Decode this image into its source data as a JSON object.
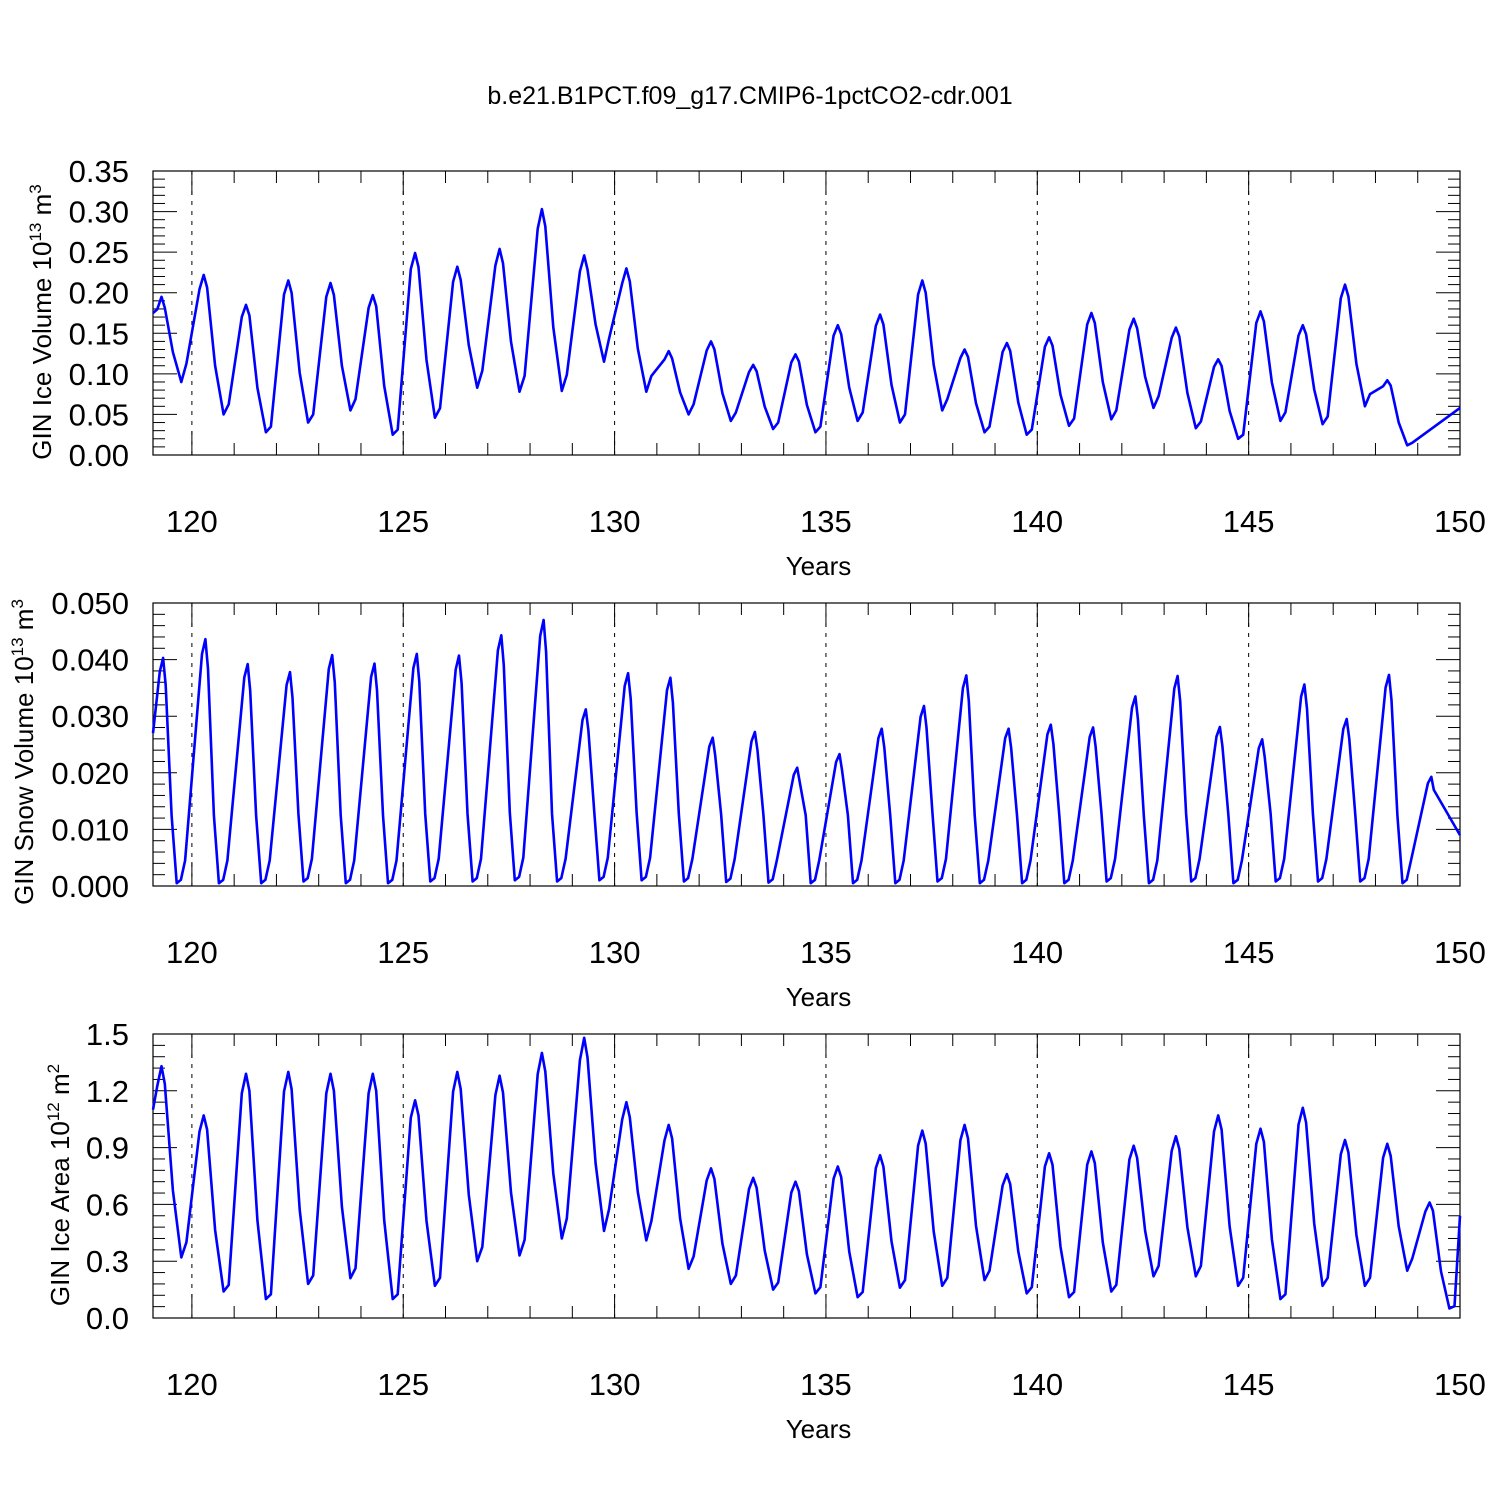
{
  "figure": {
    "title": "b.e21.B1PCT.f09_g17.CMIP6-1pctCO2-cdr.001"
  },
  "chart_data": [
    {
      "type": "line",
      "ylabel": "GIN Ice Volume 10",
      "ylabel_exp": "13",
      "ylabel_unit": " m",
      "ylabel_unit_exp": "3",
      "xlabel": "Years",
      "xlim": [
        119.08,
        150.0
      ],
      "ylim": [
        0,
        0.35
      ],
      "xticks": [
        "120",
        "125",
        "130",
        "135",
        "140",
        "145",
        "150"
      ],
      "yticks": [
        "0.00",
        "0.05",
        "0.10",
        "0.15",
        "0.20",
        "0.25",
        "0.30",
        "0.35"
      ],
      "grid": "x-dashed",
      "color": "#0000ff",
      "troughs": [
        0.09,
        0.05,
        0.028,
        0.04,
        0.055,
        0.025,
        0.046,
        0.083,
        0.078,
        0.079,
        0.115,
        0.078,
        0.05,
        0.042,
        0.032,
        0.028,
        0.042,
        0.04,
        0.055,
        0.028,
        0.025,
        0.036,
        0.044,
        0.058,
        0.033,
        0.02,
        0.042,
        0.038,
        0.06,
        0.012
      ],
      "peaks": [
        0.195,
        0.222,
        0.185,
        0.215,
        0.212,
        0.197,
        0.249,
        0.232,
        0.254,
        0.303,
        0.246,
        0.23,
        0.128,
        0.14,
        0.111,
        0.124,
        0.16,
        0.173,
        0.215,
        0.13,
        0.138,
        0.145,
        0.175,
        0.168,
        0.157,
        0.118,
        0.177,
        0.16,
        0.21,
        0.092
      ]
    },
    {
      "type": "line",
      "ylabel": "GIN Snow Volume 10",
      "ylabel_exp": "13",
      "ylabel_unit": " m",
      "ylabel_unit_exp": "3",
      "xlabel": "Years",
      "xlim": [
        119.08,
        150.0
      ],
      "ylim": [
        0,
        0.05
      ],
      "xticks": [
        "120",
        "125",
        "130",
        "135",
        "140",
        "145",
        "150"
      ],
      "yticks": [
        "0.000",
        "0.010",
        "0.020",
        "0.030",
        "0.040",
        "0.050"
      ],
      "grid": "x-dashed",
      "color": "#0000ff",
      "troughs": [
        0.0005,
        0.0005,
        0.0005,
        0.0008,
        0.0005,
        0.0005,
        0.0008,
        0.0008,
        0.001,
        0.0008,
        0.001,
        0.001,
        0.0008,
        0.0007,
        0.0006,
        0.0005,
        0.0005,
        0.0005,
        0.0008,
        0.0005,
        0.0005,
        0.0005,
        0.0008,
        0.0005,
        0.0008,
        0.0005,
        0.0008,
        0.0008,
        0.0008,
        0.0005
      ],
      "peaks": [
        0.0403,
        0.0436,
        0.0392,
        0.0378,
        0.0408,
        0.0393,
        0.041,
        0.0407,
        0.0443,
        0.047,
        0.0312,
        0.0376,
        0.0368,
        0.0262,
        0.0272,
        0.0209,
        0.0233,
        0.0278,
        0.0318,
        0.0372,
        0.0278,
        0.0285,
        0.028,
        0.0335,
        0.0371,
        0.0281,
        0.0259,
        0.0356,
        0.0295,
        0.0373,
        0.0193
      ]
    },
    {
      "type": "line",
      "ylabel": "GIN Ice Area 10",
      "ylabel_exp": "12",
      "ylabel_unit": " m",
      "ylabel_unit_exp": "2",
      "xlabel": "Years",
      "xlim": [
        119.08,
        150.0
      ],
      "ylim": [
        0,
        1.5
      ],
      "xticks": [
        "120",
        "125",
        "130",
        "135",
        "140",
        "145",
        "150"
      ],
      "yticks": [
        "0.0",
        "0.3",
        "0.6",
        "0.9",
        "1.2",
        "1.5"
      ],
      "grid": "x-dashed",
      "color": "#0000ff",
      "troughs": [
        0.32,
        0.14,
        0.1,
        0.18,
        0.21,
        0.1,
        0.17,
        0.3,
        0.33,
        0.42,
        0.46,
        0.41,
        0.26,
        0.18,
        0.15,
        0.13,
        0.11,
        0.16,
        0.17,
        0.2,
        0.13,
        0.11,
        0.14,
        0.22,
        0.22,
        0.17,
        0.1,
        0.17,
        0.17,
        0.25,
        0.05
      ],
      "peaks": [
        1.33,
        1.07,
        1.29,
        1.3,
        1.29,
        1.29,
        1.15,
        1.3,
        1.28,
        1.4,
        1.48,
        1.14,
        1.02,
        0.79,
        0.74,
        0.72,
        0.8,
        0.86,
        0.99,
        1.02,
        0.76,
        0.87,
        0.88,
        0.91,
        0.96,
        1.07,
        1.0,
        1.11,
        0.94,
        0.92,
        0.61
      ]
    }
  ]
}
